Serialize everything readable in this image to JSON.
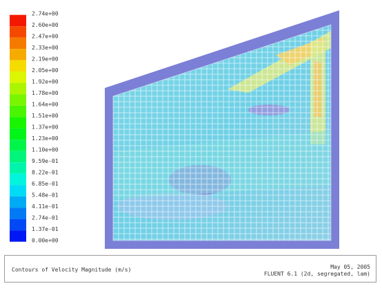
{
  "colorbar": {
    "labels": [
      "2.74e+00",
      "2.60e+00",
      "2.47e+00",
      "2.33e+00",
      "2.19e+00",
      "2.05e+00",
      "1.92e+00",
      "1.78e+00",
      "1.64e+00",
      "1.51e+00",
      "1.37e+00",
      "1.23e+00",
      "1.10e+00",
      "9.59e-01",
      "8.22e-01",
      "6.85e-01",
      "5.48e-01",
      "4.11e-01",
      "2.74e-01",
      "1.37e-01",
      "0.00e+00"
    ]
  },
  "footer": {
    "title": "Contours of Velocity Magnitude (m/s)",
    "date": "May 05, 2005",
    "version": "FLUENT 6.1 (2d, segregated, lam)"
  }
}
